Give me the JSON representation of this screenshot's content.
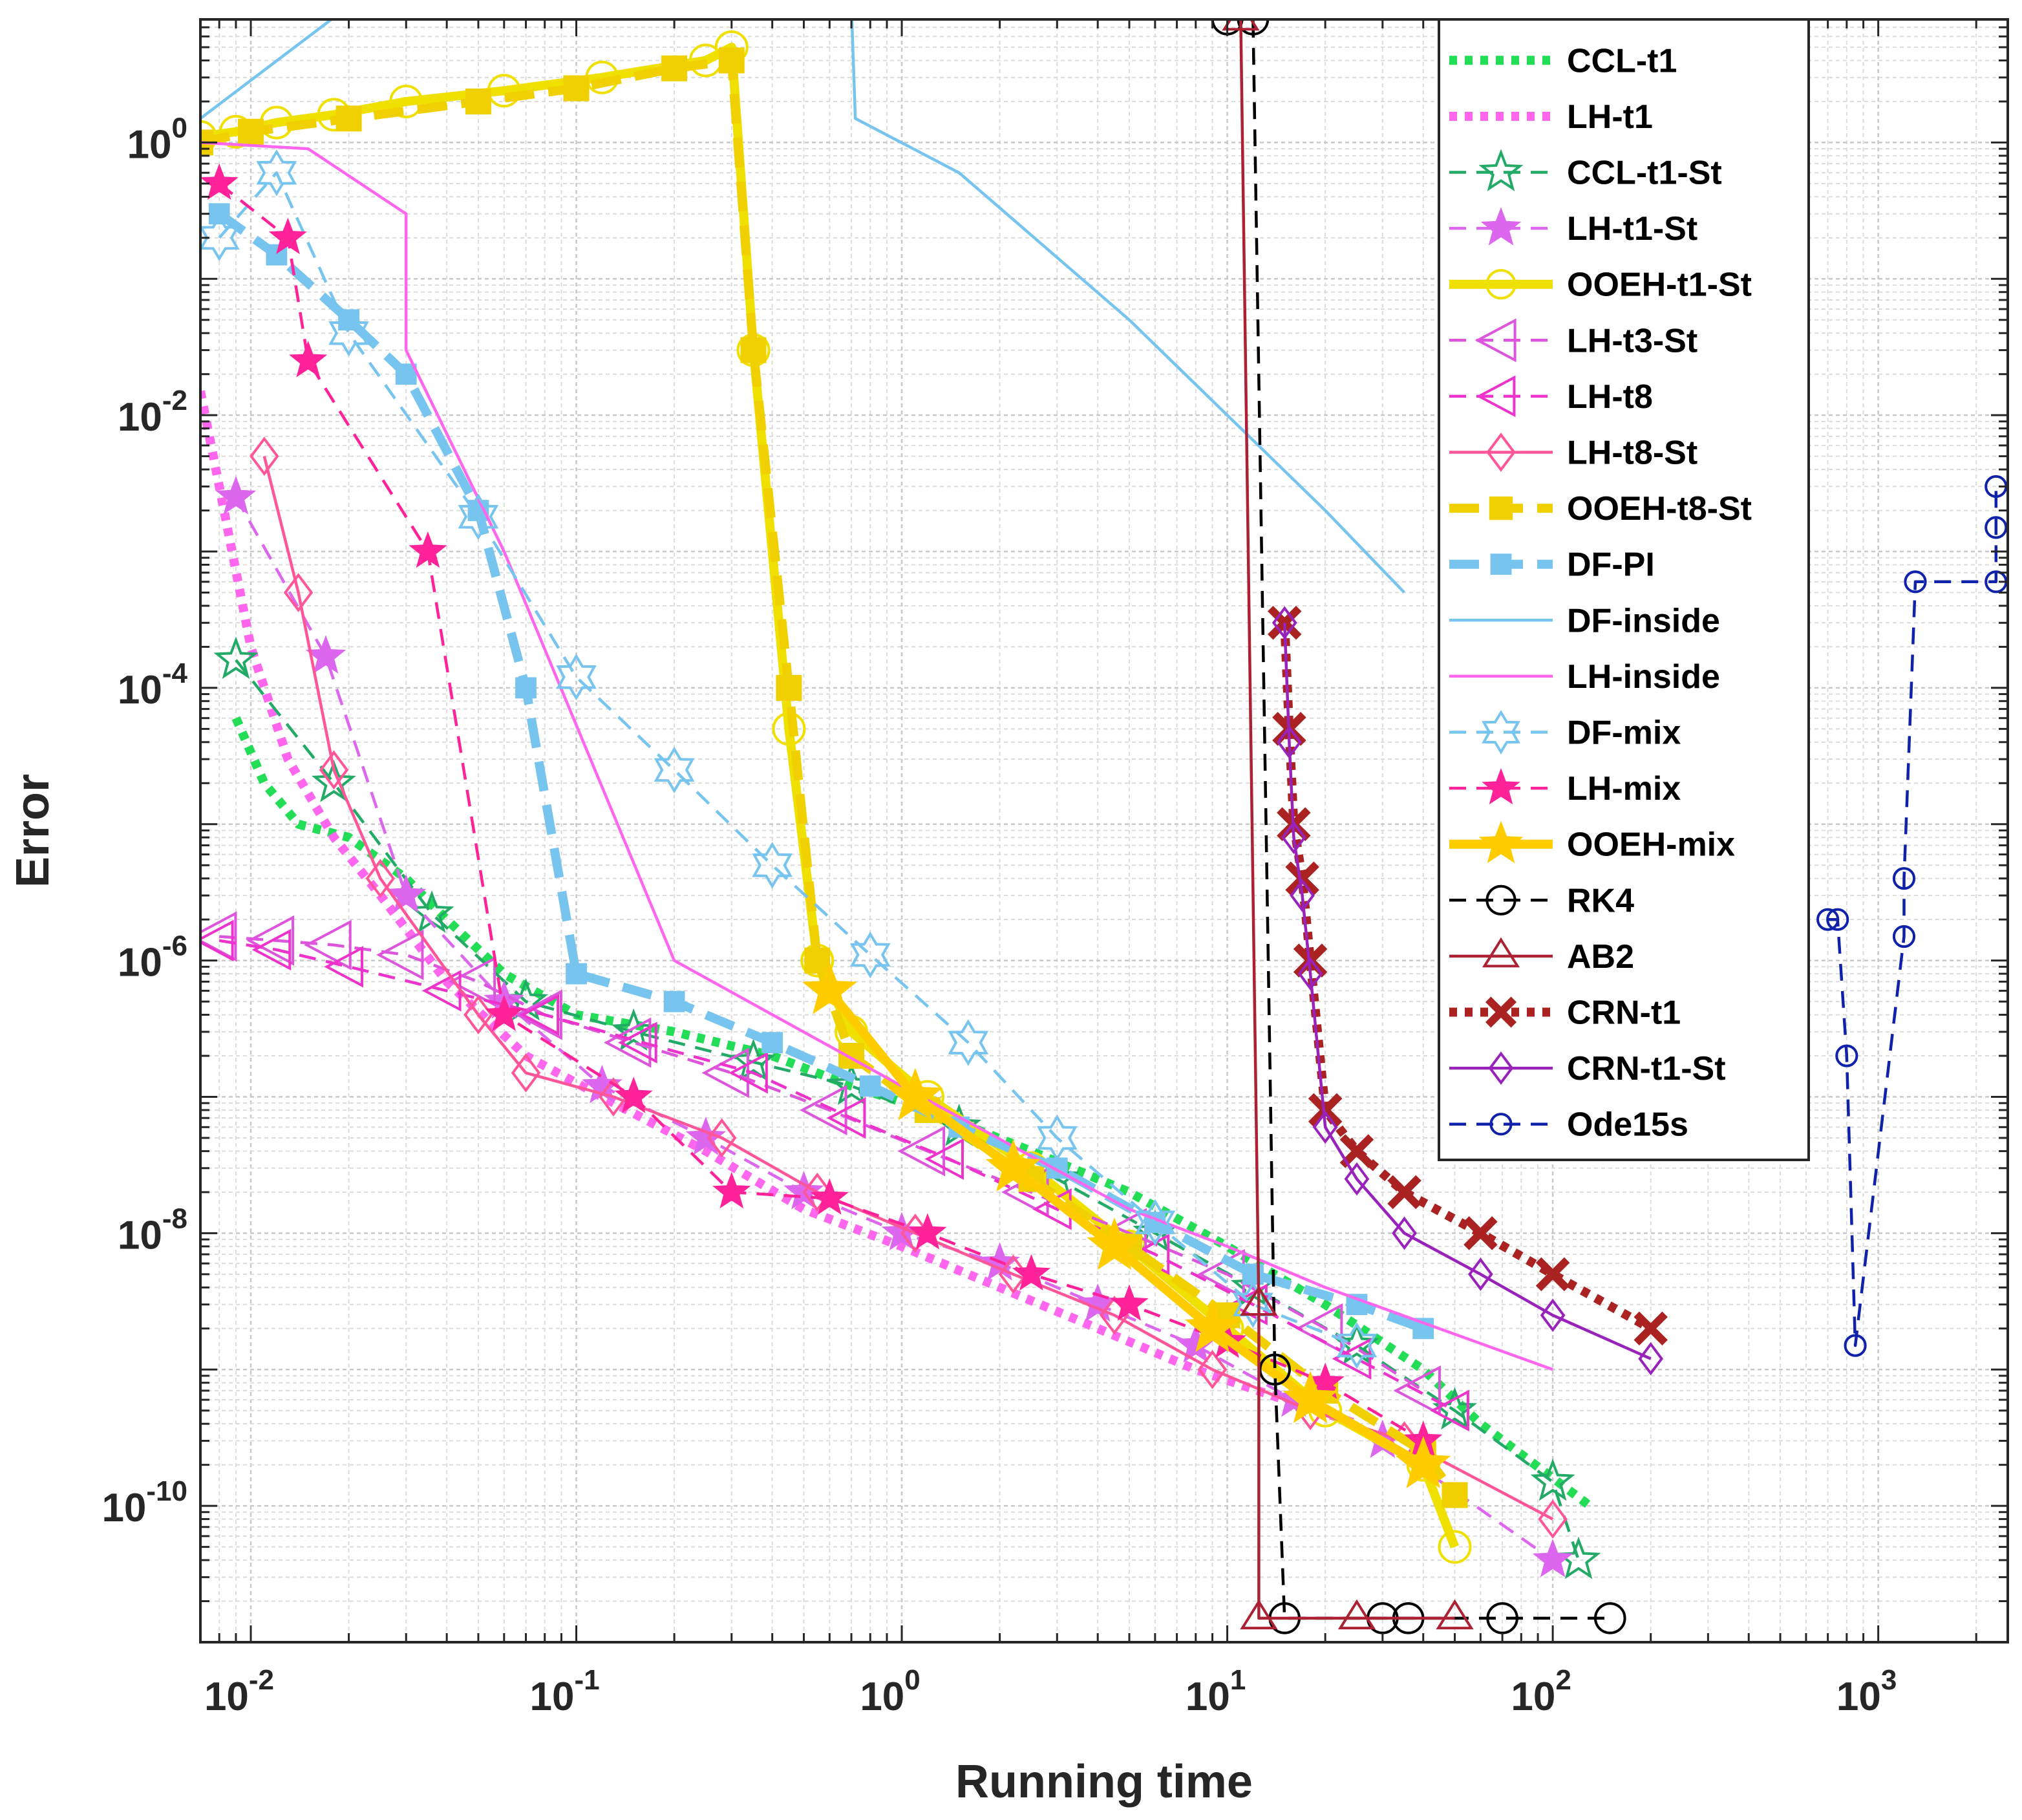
{
  "chart_data": {
    "type": "line",
    "title": "",
    "xlabel": "Running time",
    "ylabel": "Error",
    "xscale": "log",
    "yscale": "log",
    "xlim": [
      0.007,
      2500
    ],
    "ylim": [
      1e-11,
      8
    ],
    "x_ticks": [
      {
        "base": "10",
        "exp": "-2"
      },
      {
        "base": "10",
        "exp": "-1"
      },
      {
        "base": "10",
        "exp": "0"
      },
      {
        "base": "10",
        "exp": "1"
      },
      {
        "base": "10",
        "exp": "2"
      },
      {
        "base": "10",
        "exp": "3"
      }
    ],
    "y_ticks": [
      {
        "base": "10",
        "exp": "-10"
      },
      {
        "base": "10",
        "exp": "-8"
      },
      {
        "base": "10",
        "exp": "-6"
      },
      {
        "base": "10",
        "exp": "-4"
      },
      {
        "base": "10",
        "exp": "-2"
      },
      {
        "base": "10",
        "exp": "0"
      }
    ],
    "grid": true,
    "legend_position": "top-right",
    "series": [
      {
        "name": "CCL-t1",
        "color": "#22dd55",
        "style": "dotted",
        "marker": "none",
        "x": [
          0.009,
          0.011,
          0.014,
          0.02,
          0.03,
          0.04,
          0.06,
          0.1,
          0.2,
          0.4,
          0.7,
          1.2,
          2.5,
          5,
          10,
          20,
          40,
          60,
          130
        ],
        "y": [
          6e-05,
          2e-05,
          1e-05,
          8e-06,
          4e-06,
          2e-06,
          8e-07,
          4e-07,
          3e-07,
          2e-07,
          1.2e-07,
          8e-08,
          4e-08,
          2e-08,
          8e-09,
          3e-09,
          1e-09,
          4e-10,
          1e-10
        ]
      },
      {
        "name": "LH-t1",
        "color": "#ff66ee",
        "style": "dotted",
        "marker": "none",
        "x": [
          0.007,
          0.008,
          0.01,
          0.013,
          0.018,
          0.025,
          0.04,
          0.07,
          0.12,
          0.25,
          0.5,
          1,
          2,
          4,
          8,
          15,
          25
        ],
        "y": [
          0.015,
          0.003,
          0.0002,
          3e-05,
          8e-06,
          3e-06,
          7e-07,
          2e-07,
          1e-07,
          4e-08,
          1.5e-08,
          8e-09,
          4e-09,
          2e-09,
          1e-09,
          6e-10,
          4e-10
        ]
      },
      {
        "name": "CCL-t1-St",
        "color": "#22aa66",
        "style": "dashed",
        "marker": "pentagram",
        "filled": false,
        "x": [
          0.009,
          0.018,
          0.036,
          0.07,
          0.15,
          0.35,
          0.7,
          1.5,
          3,
          6,
          12,
          25,
          50,
          100,
          120
        ],
        "y": [
          0.00016,
          2e-05,
          2.2e-06,
          5e-07,
          3e-07,
          1.8e-07,
          1.2e-07,
          6e-08,
          2.5e-08,
          1e-08,
          4e-09,
          1.5e-09,
          5e-10,
          1.5e-10,
          4e-11
        ]
      },
      {
        "name": "LH-t1-St",
        "color": "#dd66ee",
        "style": "dashed",
        "marker": "pentagram",
        "filled": true,
        "x": [
          0.009,
          0.017,
          0.03,
          0.06,
          0.12,
          0.25,
          0.5,
          1,
          2,
          4,
          8,
          16,
          30,
          100
        ],
        "y": [
          0.0025,
          0.00017,
          3e-06,
          5e-07,
          1.2e-07,
          5e-08,
          2e-08,
          1e-08,
          6e-09,
          3e-09,
          1.5e-09,
          6e-10,
          3e-10,
          4e-11
        ]
      },
      {
        "name": "OOEH-t1-St",
        "color": "#f0e000",
        "style": "solid",
        "marker": "circle",
        "filled": false,
        "x": [
          0.007,
          0.009,
          0.012,
          0.018,
          0.03,
          0.06,
          0.12,
          0.25,
          0.3,
          0.35,
          0.45,
          0.55,
          0.7,
          1.2,
          2.5,
          5,
          10,
          20,
          40,
          50
        ],
        "y": [
          1.1,
          1.2,
          1.4,
          1.6,
          2,
          2.4,
          3,
          4,
          5,
          0.03,
          5e-05,
          1e-06,
          3e-07,
          1e-07,
          3e-08,
          8e-09,
          2e-09,
          5e-10,
          2e-10,
          5e-11
        ]
      },
      {
        "name": "LH-t3-St",
        "color": "#dd55dd",
        "style": "dashed",
        "marker": "triangle-left",
        "filled": false,
        "x": [
          0.008,
          0.012,
          0.018,
          0.03,
          0.05,
          0.08,
          0.15,
          0.3,
          0.6,
          1.2,
          2.5,
          5,
          10,
          20,
          40
        ],
        "y": [
          1.5e-06,
          1.4e-06,
          1.3e-06,
          1.1e-06,
          7e-07,
          4e-07,
          2.5e-07,
          1.5e-07,
          8e-08,
          4e-08,
          2e-08,
          1e-08,
          5e-09,
          2e-09,
          7e-10
        ]
      },
      {
        "name": "LH-t8",
        "color": "#ee33cc",
        "style": "dashed",
        "marker": "triangle-left",
        "filled": false,
        "x": [
          0.008,
          0.012,
          0.02,
          0.04,
          0.08,
          0.16,
          0.35,
          0.7,
          1.4,
          3,
          6,
          12,
          25,
          50
        ],
        "y": [
          1.4e-06,
          1.2e-06,
          9e-07,
          6e-07,
          4e-07,
          2.5e-07,
          1.5e-07,
          7e-08,
          3.5e-08,
          1.5e-08,
          7e-09,
          3e-09,
          1.2e-09,
          5e-10
        ]
      },
      {
        "name": "LH-t8-St",
        "color": "#ff5599",
        "style": "solid",
        "marker": "diamond",
        "filled": false,
        "x": [
          0.011,
          0.014,
          0.018,
          0.025,
          0.05,
          0.07,
          0.13,
          0.28,
          0.55,
          1.1,
          2.2,
          4.5,
          9,
          18,
          35,
          100
        ],
        "y": [
          0.005,
          0.0005,
          2.5e-05,
          4e-06,
          4e-07,
          1.5e-07,
          1e-07,
          5e-08,
          2e-08,
          1e-08,
          5e-09,
          2.5e-09,
          1e-09,
          5e-10,
          3e-10,
          8e-11
        ]
      },
      {
        "name": "OOEH-t8-St",
        "color": "#f0d000",
        "style": "dashed",
        "marker": "square",
        "filled": true,
        "x": [
          0.007,
          0.01,
          0.02,
          0.05,
          0.1,
          0.2,
          0.3,
          0.35,
          0.45,
          0.55,
          0.7,
          1.2,
          2.5,
          5,
          10,
          20,
          40,
          50
        ],
        "y": [
          1,
          1.2,
          1.5,
          2,
          2.5,
          3.5,
          4,
          0.03,
          0.0001,
          1e-06,
          2e-07,
          8e-08,
          2.5e-08,
          8e-09,
          2.5e-09,
          7e-10,
          2.5e-10,
          1.2e-10
        ]
      },
      {
        "name": "DF-PI",
        "color": "#77c4ee",
        "style": "dashed",
        "marker": "square",
        "filled": true,
        "x": [
          0.008,
          0.012,
          0.02,
          0.03,
          0.05,
          0.07,
          0.1,
          0.2,
          0.4,
          0.8,
          1.5,
          3,
          6,
          12,
          25,
          40
        ],
        "y": [
          0.3,
          0.15,
          0.05,
          0.02,
          0.002,
          0.0001,
          8e-07,
          5e-07,
          2.5e-07,
          1.2e-07,
          6e-08,
          3e-08,
          1.2e-08,
          5e-09,
          3e-09,
          2e-09
        ]
      },
      {
        "name": "DF-inside",
        "color": "#77c4ee",
        "style": "solid",
        "marker": "none",
        "x": [
          0.007,
          0.02,
          0.7,
          0.72,
          1.5,
          5,
          10,
          20,
          35
        ],
        "y": [
          1.5,
          10,
          10,
          1.5,
          0.6,
          0.05,
          0.01,
          0.002,
          0.0005
        ]
      },
      {
        "name": "LH-inside",
        "color": "#ff66ee",
        "style": "solid",
        "marker": "none",
        "x": [
          0.007,
          0.015,
          0.03,
          0.03,
          0.06,
          0.2,
          1,
          5,
          10,
          20,
          100
        ],
        "y": [
          1,
          0.9,
          0.3,
          0.03,
          0.001,
          1e-06,
          1.2e-07,
          1.5e-08,
          8e-09,
          4e-09,
          1e-09
        ]
      },
      {
        "name": "DF-mix",
        "color": "#77c4ee",
        "style": "dashed",
        "marker": "hexagram",
        "filled": false,
        "x": [
          0.008,
          0.012,
          0.02,
          0.05,
          0.1,
          0.2,
          0.4,
          0.8,
          1.6,
          3,
          6,
          12,
          25
        ],
        "y": [
          0.2,
          0.6,
          0.04,
          0.0018,
          0.00012,
          2.5e-05,
          5e-06,
          1.1e-06,
          2.5e-07,
          5e-08,
          1.2e-08,
          3e-09,
          1.5e-09
        ]
      },
      {
        "name": "LH-mix",
        "color": "#ff2299",
        "style": "dashed",
        "marker": "pentagram",
        "filled": true,
        "x": [
          0.008,
          0.013,
          0.015,
          0.035,
          0.06,
          0.15,
          0.3,
          0.6,
          1.2,
          2.5,
          5,
          10,
          20,
          40
        ],
        "y": [
          0.5,
          0.2,
          0.025,
          0.001,
          4e-07,
          1e-07,
          2e-08,
          1.8e-08,
          1e-08,
          5e-09,
          3e-09,
          1.6e-09,
          8e-10,
          3e-10
        ]
      },
      {
        "name": "OOEH-mix",
        "color": "#ffcc00",
        "style": "solid",
        "marker": "pentagram",
        "filled": true,
        "x": [
          0.6,
          1.1,
          2.2,
          4.5,
          9,
          18,
          40
        ],
        "y": [
          6e-07,
          1e-07,
          3e-08,
          8e-09,
          2e-09,
          6e-10,
          2e-10
        ]
      },
      {
        "name": "RK4",
        "color": "#000000",
        "style": "dashed",
        "marker": "circle",
        "filled": false,
        "x": [
          10,
          12,
          14,
          15,
          30,
          36,
          70,
          150
        ],
        "y": [
          8,
          8,
          1e-09,
          1.5e-11,
          1.5e-11,
          1.5e-11,
          1.5e-11,
          1.5e-11
        ]
      },
      {
        "name": "AB2",
        "color": "#aa2233",
        "style": "solid",
        "marker": "triangle-up",
        "filled": false,
        "x": [
          11,
          12.5,
          12.5,
          25,
          50
        ],
        "y": [
          8,
          3e-09,
          1.5e-11,
          1.5e-11,
          1.5e-11
        ]
      },
      {
        "name": "CRN-t1",
        "color": "#aa2222",
        "style": "dotted",
        "marker": "x",
        "filled": false,
        "x": [
          15,
          15.5,
          16,
          17,
          18,
          20,
          25,
          35,
          60,
          100,
          200
        ],
        "y": [
          0.0003,
          5e-05,
          1e-05,
          4e-06,
          1e-06,
          8e-08,
          4e-08,
          2e-08,
          1e-08,
          5e-09,
          2e-09
        ]
      },
      {
        "name": "CRN-t1-St",
        "color": "#9922bb",
        "style": "solid",
        "marker": "diamond",
        "filled": false,
        "x": [
          15,
          15.5,
          16,
          17,
          18,
          20,
          25,
          35,
          60,
          100,
          200
        ],
        "y": [
          0.0003,
          4e-05,
          8e-06,
          3e-06,
          8e-07,
          6e-08,
          2.5e-08,
          1e-08,
          5e-09,
          2.5e-09,
          1.2e-09
        ]
      },
      {
        "name": "Ode15s",
        "color": "#1122aa",
        "style": "dashed",
        "marker": "circle",
        "filled": false,
        "x": [
          700,
          750,
          800,
          850,
          1200,
          1200,
          1300,
          2300,
          2300,
          2300
        ],
        "y": [
          2e-06,
          2e-06,
          2e-07,
          1.5e-09,
          1.5e-06,
          4e-06,
          0.0006,
          0.0006,
          0.0015,
          0.003
        ]
      }
    ]
  }
}
